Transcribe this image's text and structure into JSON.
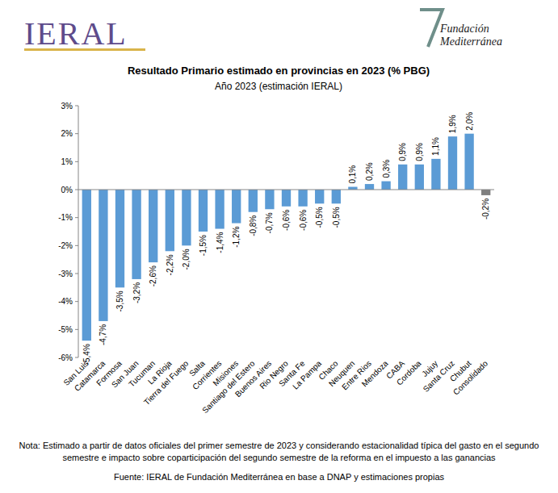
{
  "logos": {
    "left": "IERAL",
    "right": [
      "Fundación",
      "Mediterránea"
    ]
  },
  "chart_data": {
    "type": "bar",
    "title": "Resultado Primario estimado en provincias en 2023 (% PBG)",
    "subtitle": "Año 2023 (estimación IERAL)",
    "categories": [
      "San Luis",
      "Catamarca",
      "Formosa",
      "San Juan",
      "Tucuman",
      "La Rioja",
      "Tierra del Fuego",
      "Salta",
      "Corrientes",
      "Misiones",
      "Santiago del Estero",
      "Buenos Aires",
      "Rio Negro",
      "Santa Fe",
      "La Pampa",
      "Chaco",
      "Neuquen",
      "Entre Rios",
      "Mendoza",
      "CABA",
      "Cordoba",
      "Jujuy",
      "Santa Cruz",
      "Chubut",
      "Consolidado"
    ],
    "values": [
      -5.4,
      -4.7,
      -3.5,
      -3.2,
      -2.6,
      -2.2,
      -2.0,
      -1.5,
      -1.4,
      -1.2,
      -0.8,
      -0.7,
      -0.6,
      -0.6,
      -0.5,
      -0.5,
      0.1,
      0.2,
      0.3,
      0.9,
      0.9,
      1.1,
      1.9,
      2.0,
      -0.2
    ],
    "value_labels": [
      "-5,4%",
      "-4,7%",
      "-3,5%",
      "-3,2%",
      "-2,6%",
      "-2,2%",
      "-2,0%",
      "-1,5%",
      "-1,4%",
      "-1,2%",
      "-0,8%",
      "-0,7%",
      "-0,6%",
      "-0,6%",
      "-0,5%",
      "-0,5%",
      "0,1%",
      "0,2%",
      "0,3%",
      "0,9%",
      "0,9%",
      "1,1%",
      "1,9%",
      "2,0%",
      "-0,2%"
    ],
    "colors": [
      "#5b9bd5",
      "#5b9bd5",
      "#5b9bd5",
      "#5b9bd5",
      "#5b9bd5",
      "#5b9bd5",
      "#5b9bd5",
      "#5b9bd5",
      "#5b9bd5",
      "#5b9bd5",
      "#5b9bd5",
      "#5b9bd5",
      "#5b9bd5",
      "#5b9bd5",
      "#5b9bd5",
      "#5b9bd5",
      "#5b9bd5",
      "#5b9bd5",
      "#5b9bd5",
      "#5b9bd5",
      "#5b9bd5",
      "#5b9bd5",
      "#5b9bd5",
      "#5b9bd5",
      "#7f7f7f"
    ],
    "ylim": [
      -6,
      3
    ],
    "yticks": [
      {
        "value": -6,
        "label": "-6%"
      },
      {
        "value": -5,
        "label": "-5%"
      },
      {
        "value": -4,
        "label": "-4%"
      },
      {
        "value": -3,
        "label": "-3%"
      },
      {
        "value": -2,
        "label": "-2%"
      },
      {
        "value": -1,
        "label": "-1%"
      },
      {
        "value": 0,
        "label": "0%"
      },
      {
        "value": 1,
        "label": "1%"
      },
      {
        "value": 2,
        "label": "2%"
      },
      {
        "value": 3,
        "label": "3%"
      }
    ],
    "grid": false,
    "data_labels": true
  },
  "footer": {
    "note": "Nota: Estimado a partir de datos oficiales del primer semestre de 2023 y considerando estacionalidad típica del gasto en el segundo semestre e impacto sobre coparticipación del segundo semestre de la reforma en el impuesto a las ganancias",
    "source": "Fuente: IERAL de Fundación Mediterránea en base a DNAP y estimaciones propias"
  }
}
